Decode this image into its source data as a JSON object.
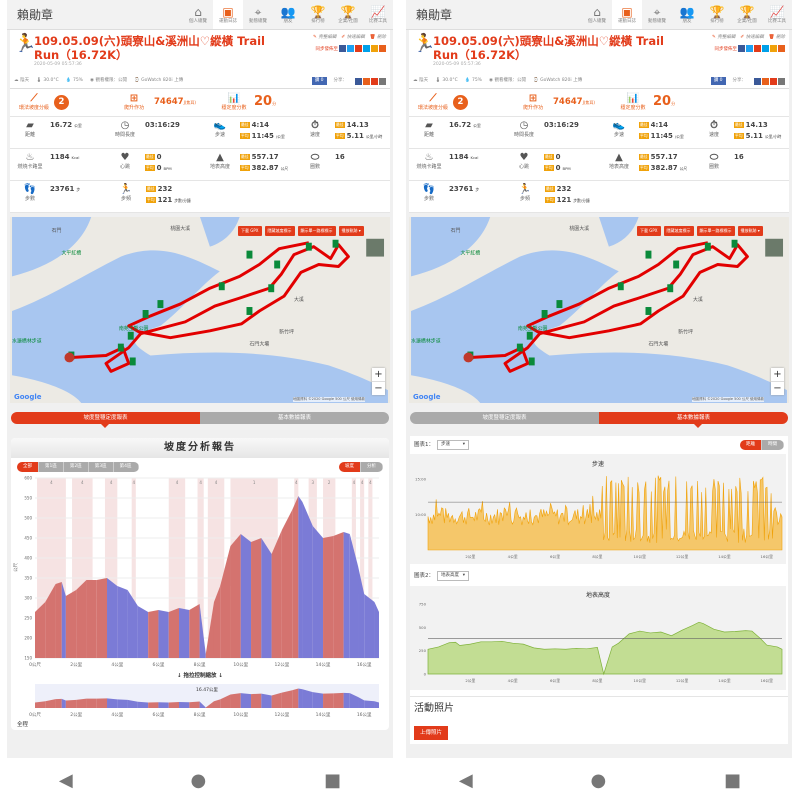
{
  "nav": {
    "brand": "賴勛章",
    "tabs": [
      {
        "label": "個人總覽",
        "icon": "home-icon",
        "glyph": "⌂"
      },
      {
        "label": "運動日誌",
        "icon": "clipboard-icon",
        "glyph": "▣"
      },
      {
        "label": "動態總覽",
        "icon": "location-icon",
        "glyph": "⌖"
      },
      {
        "label": "朋友",
        "icon": "friends-icon",
        "glyph": "👥"
      },
      {
        "label": "排行榜",
        "icon": "trophy-icon",
        "glyph": "🏆"
      },
      {
        "label": "企業/社團",
        "icon": "cup-icon",
        "glyph": "🏆"
      },
      {
        "label": "比賽工具",
        "icon": "chart-tool-icon",
        "glyph": "📈"
      }
    ],
    "active": 1
  },
  "activity": {
    "title": "109.05.09(六)頭寮山&溪洲山♡縱橫 Trail Run（16.72K）",
    "timestamp": "2020-05-09 05:57:36",
    "actions": [
      "完整編輯",
      "快速編輯",
      "刪除"
    ],
    "sync_label": "同步發佈至",
    "weather": [
      "陰天",
      "30.0°C",
      "75%",
      "觀看權限：公開",
      "GoWatch 820i 上傳"
    ],
    "like": "讚 0",
    "share": "分享："
  },
  "grades": [
    {
      "label": "環法坡度分級",
      "value": "2",
      "unit": ""
    },
    {
      "label": "爬升作功",
      "value": "74647",
      "unit": "J(焦耳)"
    },
    {
      "label": "穩定度分數",
      "value": "20",
      "unit": "分"
    }
  ],
  "badges": {
    "best": "最佳",
    "avg": "平均"
  },
  "stats": [
    [
      {
        "label": "距離",
        "icon": "distance-icon",
        "glyph": "▰",
        "value": "16.72",
        "unit": "公里"
      },
      {
        "label": "時間長度",
        "icon": "clock-icon",
        "glyph": "◷",
        "value": "03:16:29",
        "unit": ""
      },
      {
        "label": "步速",
        "icon": "shoe-icon",
        "glyph": "👟",
        "best": "4:14",
        "avg": "11:45",
        "unit": "/公里"
      },
      {
        "label": "速度",
        "icon": "stopwatch-icon",
        "glyph": "⏱",
        "best": "14.13",
        "avg": "5.11",
        "unit": "公里/小時"
      }
    ],
    [
      {
        "label": "燃燒卡路里",
        "icon": "flame-icon",
        "glyph": "♨",
        "value": "1184",
        "unit": "Kcal"
      },
      {
        "label": "心跳",
        "icon": "heart-icon",
        "glyph": "♥",
        "best": "0",
        "avg": "0",
        "unit": "BPM"
      },
      {
        "label": "地表高度",
        "icon": "mountain-icon",
        "glyph": "▲",
        "best": "557.17",
        "avg": "382.87",
        "unit": "公尺"
      },
      {
        "label": "圈數",
        "icon": "lap-icon",
        "glyph": "⬭",
        "value": "16",
        "unit": ""
      }
    ],
    [
      {
        "label": "步數",
        "icon": "footprints-icon",
        "glyph": "👣",
        "value": "23761",
        "unit": "步"
      },
      {
        "label": "步頻",
        "icon": "cadence-icon",
        "glyph": "🏃",
        "best": "232",
        "avg": "121",
        "unit": "步數/分鐘"
      }
    ]
  ],
  "map": {
    "buttons": [
      "下載 GPX",
      "隱藏坡度標示",
      "顯示單一路標標示",
      "播放軌跡 ▾"
    ],
    "places": [
      "石門",
      "大平紅橋",
      "桃園大溪",
      "南苑生態公園",
      "水濂橋林步道",
      "大溪",
      "新竹坪",
      "石門大壩"
    ],
    "footer": "地圖資料 ©2020 Google  500 公尺  使用條款",
    "logo": "Google"
  },
  "report_tabs": [
    "坡度暨穩定度報表",
    "基本數據報表"
  ],
  "slope_report": {
    "title": "坡度分析報告",
    "segments": [
      "全部",
      "第1區",
      "第2區",
      "第3區",
      "第4區"
    ],
    "toggle": [
      "坡度",
      "分析"
    ],
    "zoom_hint": "↓ 拖拉控制縮放 ↓",
    "navigator_label": "16.47公里",
    "bottom_label": "全程"
  },
  "basic_report": {
    "chart1_label": "圖表1：",
    "chart1_select": "步速",
    "toggle": [
      "距離",
      "時間"
    ],
    "chart2_label": "圖表2：",
    "chart2_select": "地表高度",
    "photos_title": "活動照片",
    "upload": "上傳照片"
  },
  "chart_data": [
    {
      "type": "area",
      "title": "坡度分析報告",
      "ylabel": "公尺",
      "ylim": [
        150,
        600
      ],
      "yticks": [
        150,
        200,
        250,
        300,
        350,
        400,
        450,
        500,
        550,
        600
      ],
      "xlim": [
        0,
        16.72
      ],
      "xticks": [
        "0公尺",
        "2公里",
        "4公里",
        "6公里",
        "8公里",
        "10公里",
        "12公里",
        "14公里",
        "16公里"
      ],
      "x": [
        0,
        0.5,
        1,
        1.3,
        1.5,
        2,
        2.5,
        3,
        3.5,
        4,
        4.5,
        5,
        5.5,
        6,
        6.5,
        7,
        7.5,
        8,
        8.3,
        8.7,
        9,
        9.5,
        10,
        10.5,
        11,
        11.5,
        12,
        12.5,
        12.8,
        13,
        13.5,
        14,
        14.5,
        15,
        15.3,
        15.7,
        16,
        16.5,
        16.72
      ],
      "y": [
        265,
        290,
        335,
        340,
        305,
        320,
        345,
        345,
        350,
        330,
        320,
        280,
        265,
        270,
        265,
        275,
        270,
        285,
        160,
        290,
        330,
        430,
        460,
        440,
        450,
        410,
        470,
        520,
        555,
        540,
        480,
        450,
        455,
        465,
        460,
        380,
        310,
        290,
        265
      ],
      "climbs": [
        {
          "from": 0.1,
          "to": 1.5,
          "grade": "4"
        },
        {
          "from": 1.8,
          "to": 2.8,
          "grade": "4"
        },
        {
          "from": 3.4,
          "to": 4.0,
          "grade": "4"
        },
        {
          "from": 4.7,
          "to": 4.9,
          "grade": "4"
        },
        {
          "from": 6.5,
          "to": 7.3,
          "grade": "4"
        },
        {
          "from": 7.9,
          "to": 8.2,
          "grade": "4"
        },
        {
          "from": 8.4,
          "to": 9.2,
          "grade": "4"
        },
        {
          "from": 9.5,
          "to": 11.8,
          "grade": "1"
        },
        {
          "from": 12.6,
          "to": 12.8,
          "grade": "4"
        },
        {
          "from": 13.3,
          "to": 13.7,
          "grade": "3"
        },
        {
          "from": 14.0,
          "to": 14.6,
          "grade": "2"
        },
        {
          "from": 15.4,
          "to": 15.6,
          "grade": "4"
        },
        {
          "from": 15.8,
          "to": 16.0,
          "grade": "4"
        },
        {
          "from": 16.2,
          "to": 16.4,
          "grade": "4"
        }
      ],
      "series_colors": {
        "up": "#d4736f",
        "down": "#7b7bd6"
      }
    },
    {
      "type": "area",
      "title": "步速",
      "ylim": [
        5,
        16
      ],
      "yticks": [
        "15:00",
        "10:00"
      ],
      "avg_line": 11.75,
      "xticks": [
        "2公里",
        "4公里",
        "6公里",
        "8公里",
        "10公里",
        "12公里",
        "14公里",
        "16公里"
      ],
      "color": "#f0a20a"
    },
    {
      "type": "area",
      "title": "地表高度",
      "ylim": [
        0,
        750
      ],
      "yticks": [
        0,
        250,
        500,
        750
      ],
      "avg_line": 382.87,
      "xticks": [
        "2公里",
        "4公里",
        "6公里",
        "8公里",
        "10公里",
        "12公里",
        "14公里",
        "16公里"
      ],
      "color": "#9fcc5a"
    }
  ],
  "android_nav": [
    "◀",
    "●",
    "■"
  ]
}
